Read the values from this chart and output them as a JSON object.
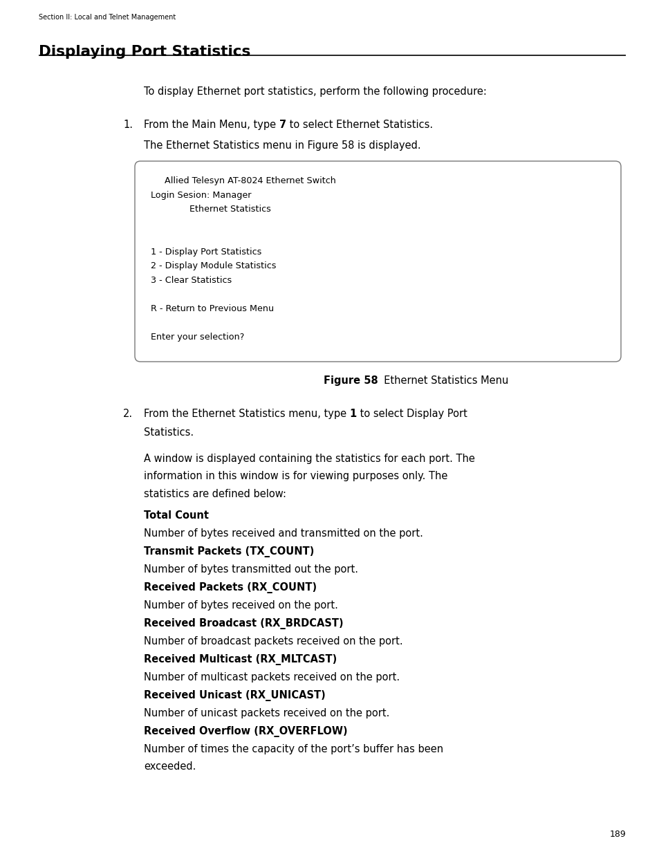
{
  "page_width": 9.54,
  "page_height": 12.35,
  "bg_color": "#ffffff",
  "header_text": "Section II: Local and Telnet Management",
  "title": "Displaying Port Statistics",
  "page_number": "189",
  "intro_text": "To display Ethernet port statistics, perform the following procedure:",
  "terminal_lines": [
    "     Allied Telesyn AT-8024 Ethernet Switch",
    "Login Sesion: Manager",
    "              Ethernet Statistics",
    "",
    "",
    "1 - Display Port Statistics",
    "2 - Display Module Statistics",
    "3 - Clear Statistics",
    "",
    "R - Return to Previous Menu",
    "",
    "Enter your selection?"
  ],
  "figure_label": "Figure 58",
  "figure_caption": "  Ethernet Statistics Menu",
  "step2_sub_lines": [
    "A window is displayed containing the statistics for each port. The",
    "information in this window is for viewing purposes only. The",
    "statistics are defined below:"
  ],
  "definitions": [
    {
      "term_bold": "Total Count",
      "desc": "Number of bytes received and transmitted on the port.",
      "desc2": ""
    },
    {
      "term_bold": "Transmit Packets (TX_COUNT)",
      "desc": "Number of bytes transmitted out the port.",
      "desc2": ""
    },
    {
      "term_bold": "Received Packets (RX_COUNT)",
      "desc": "Number of bytes received on the port.",
      "desc2": ""
    },
    {
      "term_bold": "Received Broadcast (RX_BRDCAST)",
      "desc": "Number of broadcast packets received on the port.",
      "desc2": ""
    },
    {
      "term_bold": "Received Multicast (RX_MLTCAST)",
      "desc": "Number of multicast packets received on the port.",
      "desc2": ""
    },
    {
      "term_bold": "Received Unicast (RX_UNICAST)",
      "desc": "Number of unicast packets received on the port.",
      "desc2": ""
    },
    {
      "term_bold": "Received Overflow (RX_OVERFLOW)",
      "desc": "Number of times the capacity of the port’s buffer has been",
      "desc2": "exceeded."
    }
  ]
}
